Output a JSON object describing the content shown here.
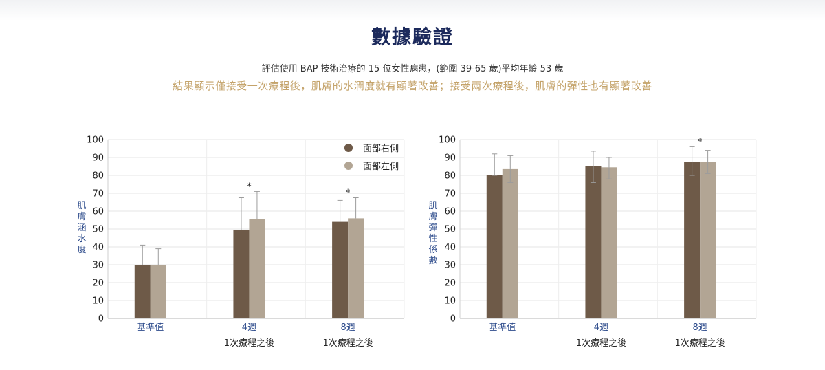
{
  "header": {
    "title": "數據驗證",
    "subtitle": "評估使用 BAP 技術治療的 15 位女性病患，(範圍 39-65 歲)平均年齡 53 歲",
    "highlight": "結果顯示僅接受一次療程後，肌膚的水潤度就有顯著改善；接受兩次療程後，肌膚的彈性也有顯著改善"
  },
  "colors": {
    "right_side": "#6e5a48",
    "left_side": "#b2a594",
    "axis_label": "#2e4c8c"
  },
  "chart_data": [
    {
      "type": "bar",
      "ylabel": "肌膚涵水度",
      "ylim": [
        0,
        100
      ],
      "yticks": [
        "100",
        "90",
        "80",
        "70",
        "60",
        "50",
        "40",
        "30",
        "20",
        "10",
        "0"
      ],
      "grid": true,
      "legend_position": "top-right",
      "categories": [
        "基準值",
        "4週",
        "8週"
      ],
      "category_sublabels": [
        "",
        "1次療程之後",
        "1次療程之後"
      ],
      "significance": [
        "",
        "*",
        "*"
      ],
      "series": [
        {
          "name": "面部右側",
          "values": [
            30,
            49.5,
            54
          ],
          "error_upper": [
            41,
            67.5,
            66
          ]
        },
        {
          "name": "面部左側",
          "values": [
            30,
            55.5,
            56
          ],
          "error_upper": [
            39,
            71,
            67.5
          ]
        }
      ]
    },
    {
      "type": "bar",
      "ylabel": "肌膚彈性係數",
      "ylim": [
        0,
        100
      ],
      "yticks": [
        "100",
        "90",
        "80",
        "70",
        "60",
        "50",
        "40",
        "30",
        "20",
        "10",
        "0"
      ],
      "grid": true,
      "categories": [
        "基準值",
        "4週",
        "8週"
      ],
      "category_sublabels": [
        "",
        "1次療程之後",
        "1次療程之後"
      ],
      "significance": [
        "",
        "",
        "*"
      ],
      "series": [
        {
          "values": [
            80,
            85,
            87.5
          ],
          "error_upper": [
            92,
            93.5,
            96
          ],
          "error_lower": [
            80,
            76,
            80
          ]
        },
        {
          "values": [
            83.5,
            84.5,
            87.5
          ],
          "error_upper": [
            91,
            90,
            94
          ],
          "error_lower": [
            76,
            78,
            81
          ]
        }
      ]
    }
  ]
}
